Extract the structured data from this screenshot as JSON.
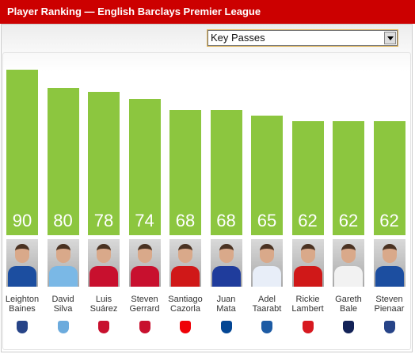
{
  "chart_data": {
    "type": "bar",
    "title": "Player Ranking — English Barclays Premier League",
    "dropdown": "Key Passes",
    "categories": [
      "Leighton Baines",
      "David Silva",
      "Luis Suárez",
      "Steven Gerrard",
      "Santiago Cazorla",
      "Juan Mata",
      "Adel Taarabt",
      "Rickie Lambert",
      "Gareth Bale",
      "Steven Pienaar"
    ],
    "values": [
      90,
      80,
      78,
      74,
      68,
      68,
      65,
      62,
      62,
      62
    ],
    "color": "#8cc63f"
  }
}
